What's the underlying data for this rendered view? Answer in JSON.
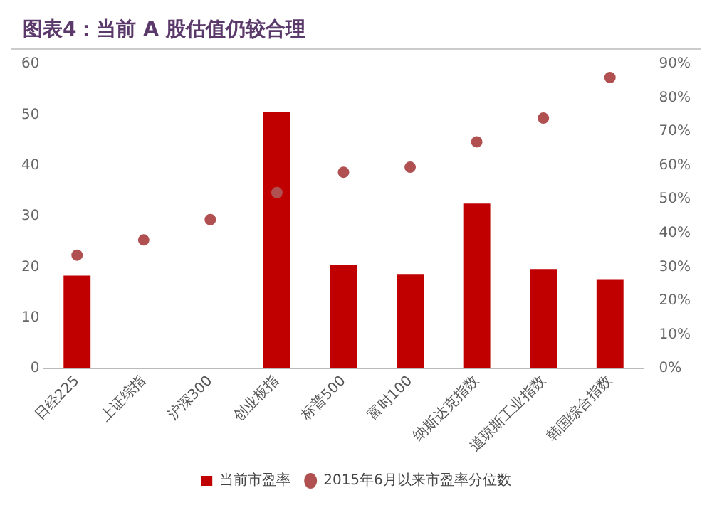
{
  "chart_data": {
    "type": "bar",
    "title": "图表4：当前 A 股估值仍较合理",
    "categories": [
      "日经225",
      "上证综指",
      "沪深300",
      "创业板指",
      "标普500",
      "富时100",
      "纳斯达克指数",
      "道琼斯工业指数",
      "韩国综合指数"
    ],
    "series": [
      {
        "name": "当前市盈率",
        "color": "#c00000",
        "values": [
          18.3,
          null,
          null,
          50.5,
          20.4,
          18.6,
          32.5,
          19.6,
          17.6
        ]
      },
      {
        "name": "2015年6月以来市盈率分位数",
        "type": "scatter",
        "axis": "y2",
        "color": "#b05050",
        "marker": "circle",
        "values": [
          33.5,
          38,
          44,
          52,
          58,
          59.5,
          67,
          74,
          86
        ]
      }
    ],
    "ylim": [
      0,
      60
    ],
    "yticks": [
      0,
      10,
      20,
      30,
      40,
      50,
      60
    ],
    "y2lim": [
      0,
      90
    ],
    "y2ticks": [
      {
        "value": 0,
        "label": "0%"
      },
      {
        "value": 10,
        "label": "10%"
      },
      {
        "value": 20,
        "label": "20%"
      },
      {
        "value": 30,
        "label": "30%"
      },
      {
        "value": 40,
        "label": "40%"
      },
      {
        "value": 50,
        "label": "50%"
      },
      {
        "value": 60,
        "label": "60%"
      },
      {
        "value": 70,
        "label": "70%"
      },
      {
        "value": 80,
        "label": "80%"
      },
      {
        "value": 90,
        "label": "90%"
      }
    ],
    "grid": false,
    "legend": "bottom"
  }
}
